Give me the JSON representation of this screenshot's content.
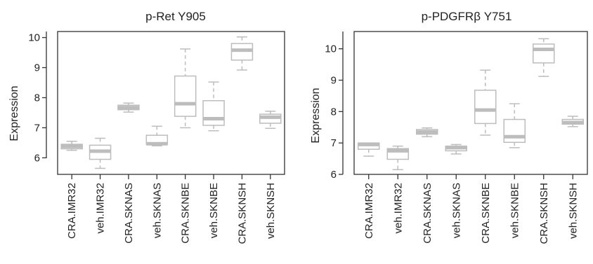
{
  "chart_data": [
    {
      "type": "box",
      "title": "p-Ret Y905",
      "xlabel": "",
      "ylabel": "Expression",
      "ylim": [
        5.45,
        10.2
      ],
      "yticks": [
        6,
        7,
        8,
        9,
        10
      ],
      "categories": [
        "CRA.IMR32",
        "veh.IMR32",
        "CRA.SKNAS",
        "veh.SKNAS",
        "CRA.SKNBE",
        "veh.SKNBE",
        "CRA.SKNSH",
        "veh.SKNSH"
      ],
      "boxes": [
        {
          "min": 6.25,
          "q1": 6.3,
          "median": 6.38,
          "q3": 6.45,
          "max": 6.55
        },
        {
          "min": 5.65,
          "q1": 5.95,
          "median": 6.22,
          "q3": 6.42,
          "max": 6.65
        },
        {
          "min": 7.52,
          "q1": 7.6,
          "median": 7.67,
          "q3": 7.75,
          "max": 7.82
        },
        {
          "min": 6.4,
          "q1": 6.45,
          "median": 6.47,
          "q3": 6.75,
          "max": 7.05
        },
        {
          "min": 7.0,
          "q1": 7.38,
          "median": 7.8,
          "q3": 8.72,
          "max": 9.62
        },
        {
          "min": 6.9,
          "q1": 7.08,
          "median": 7.3,
          "q3": 7.9,
          "max": 8.52
        },
        {
          "min": 8.92,
          "q1": 9.25,
          "median": 9.58,
          "q3": 9.8,
          "max": 10.02
        },
        {
          "min": 6.98,
          "q1": 7.15,
          "median": 7.35,
          "q3": 7.45,
          "max": 7.55
        }
      ]
    },
    {
      "type": "box",
      "title": "p-PDGFRβ Y751",
      "xlabel": "",
      "ylabel": "Expression",
      "ylim": [
        6.0,
        10.55
      ],
      "yticks": [
        6,
        7,
        8,
        9,
        10
      ],
      "categories": [
        "CRA.IMR32",
        "veh.IMR32",
        "CRA.SKNAS",
        "veh.SKNAS",
        "CRA.SKNBE",
        "veh.SKNBE",
        "CRA.SKNSH",
        "veh.SKNSH"
      ],
      "boxes": [
        {
          "min": 6.58,
          "q1": 6.8,
          "median": 6.95,
          "q3": 7.0,
          "max": 7.0
        },
        {
          "min": 6.15,
          "q1": 6.48,
          "median": 6.75,
          "q3": 6.82,
          "max": 6.9
        },
        {
          "min": 7.2,
          "q1": 7.28,
          "median": 7.35,
          "q3": 7.43,
          "max": 7.48
        },
        {
          "min": 6.65,
          "q1": 6.75,
          "median": 6.85,
          "q3": 6.9,
          "max": 6.95
        },
        {
          "min": 7.25,
          "q1": 7.62,
          "median": 8.05,
          "q3": 8.68,
          "max": 9.32
        },
        {
          "min": 6.85,
          "q1": 7.02,
          "median": 7.2,
          "q3": 7.75,
          "max": 8.25
        },
        {
          "min": 9.12,
          "q1": 9.55,
          "median": 9.98,
          "q3": 10.15,
          "max": 10.32
        },
        {
          "min": 7.52,
          "q1": 7.6,
          "median": 7.65,
          "q3": 7.75,
          "max": 7.85
        }
      ]
    }
  ],
  "style": {
    "box_color": "#bdbdbd",
    "median_color": "#bdbdbd",
    "axis_color": "#333333"
  }
}
